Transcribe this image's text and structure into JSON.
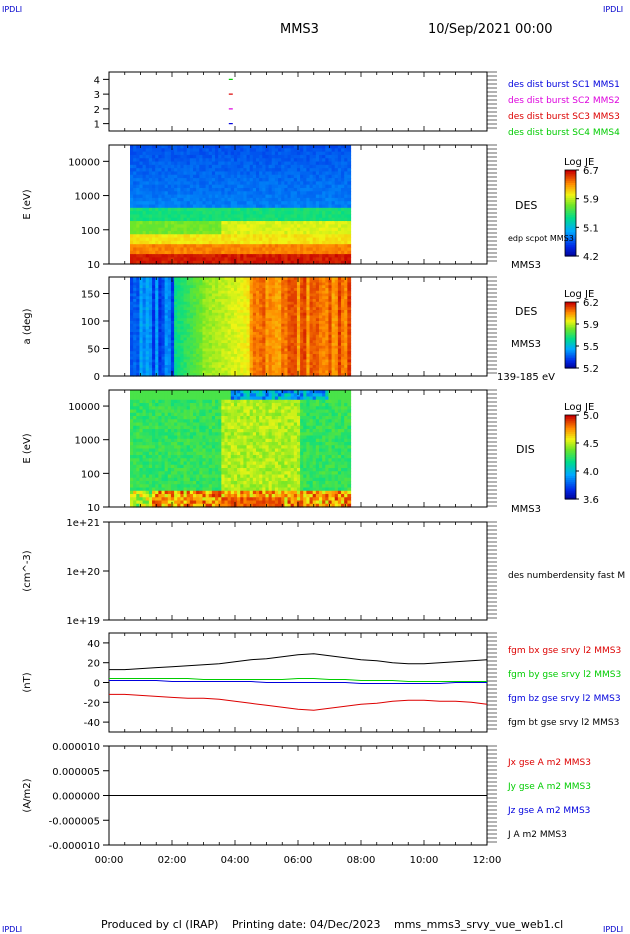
{
  "corner_label": "IPDLI",
  "header": {
    "spacecraft": "MMS3",
    "datetime": "10/Sep/2021 00:00"
  },
  "footer": {
    "produced_by": "Produced by cl (IRAP)",
    "printing_date": "Printing date: 04/Dec/2023",
    "filename": "mms_mms3_srvy_vue_web1.cl"
  },
  "chart_data": [
    {
      "id": "burst",
      "type": "scatter",
      "xlim": [
        "00:00",
        "12:00"
      ],
      "ylim": [
        0.5,
        4.5
      ],
      "yticks": [
        "1",
        "2",
        "3",
        "4"
      ],
      "series": [
        {
          "name": "des dist burst SC1 MMS1",
          "color": "#0000dd",
          "y": 1,
          "x": [
            "03:52"
          ]
        },
        {
          "name": "des dist burst SC2 MMS2",
          "color": "#dd00dd",
          "y": 2,
          "x": [
            "03:52"
          ]
        },
        {
          "name": "des dist burst SC3 MMS3",
          "color": "#dd0000",
          "y": 3,
          "x": [
            "03:52"
          ]
        },
        {
          "name": "des dist burst SC4 MMS4",
          "color": "#00cc00",
          "y": 4,
          "x": [
            "03:52"
          ]
        }
      ]
    },
    {
      "id": "des_energy",
      "type": "heatmap",
      "ylabel": "E (eV)",
      "yscale": "log",
      "ylim": [
        10,
        30000
      ],
      "yticks": [
        "10",
        "100",
        "1000",
        "10000"
      ],
      "data_span": [
        "00:40",
        "07:40"
      ],
      "right_labels": [
        "DES",
        "edp scpot MMS3",
        "MMS3"
      ],
      "colorbar": {
        "title": "Log JE",
        "ticks": [
          "6.7",
          "5.9",
          "5.1",
          "4.2"
        ],
        "range": [
          4.2,
          6.7
        ]
      }
    },
    {
      "id": "des_pitch",
      "type": "heatmap",
      "ylabel": "a (deg)",
      "ylim": [
        0,
        180
      ],
      "yticks": [
        "0",
        "50",
        "100",
        "150"
      ],
      "data_span": [
        "00:40",
        "07:40"
      ],
      "right_labels": [
        "DES",
        "MMS3",
        "139-185 eV"
      ],
      "colorbar": {
        "title": "Log JE",
        "ticks": [
          "6.2",
          "5.9",
          "5.5",
          "5.2"
        ],
        "range": [
          5.2,
          6.2
        ]
      }
    },
    {
      "id": "dis_energy",
      "type": "heatmap",
      "ylabel": "E (eV)",
      "yscale": "log",
      "ylim": [
        10,
        30000
      ],
      "yticks": [
        "10",
        "100",
        "1000",
        "10000"
      ],
      "data_span": [
        "00:40",
        "07:40"
      ],
      "right_labels": [
        "DIS",
        "MMS3"
      ],
      "colorbar": {
        "title": "Log JE",
        "ticks": [
          "5.0",
          "4.5",
          "4.0",
          "3.6"
        ],
        "range": [
          3.6,
          5.0
        ]
      }
    },
    {
      "id": "density",
      "type": "line",
      "ylabel": "(cm^-3)",
      "yscale": "log",
      "ylim": [
        1e+19,
        1e+21
      ],
      "yticks": [
        "1e+19",
        "1e+20",
        "1e+21"
      ],
      "series": [
        {
          "name": "des numberdensity fast M",
          "color": "#000000",
          "x": [],
          "y": []
        }
      ]
    },
    {
      "id": "fgm",
      "type": "line",
      "ylabel": "(nT)",
      "ylim": [
        -50,
        50
      ],
      "yticks": [
        "-40",
        "-20",
        "0",
        "20",
        "40"
      ],
      "x": [
        "00:00",
        "00:30",
        "01:00",
        "01:30",
        "02:00",
        "02:30",
        "03:00",
        "03:30",
        "04:00",
        "04:30",
        "05:00",
        "05:30",
        "06:00",
        "06:30",
        "07:00",
        "07:30",
        "08:00",
        "08:30",
        "09:00",
        "09:30",
        "10:00",
        "10:30",
        "11:00",
        "11:30",
        "12:00"
      ],
      "series": [
        {
          "name": "fgm bx gse srvy l2 MMS3",
          "color": "#dd0000",
          "values": [
            -12,
            -12,
            -13,
            -14,
            -15,
            -16,
            -16,
            -17,
            -19,
            -21,
            -23,
            -25,
            -27,
            -28,
            -26,
            -24,
            -22,
            -21,
            -19,
            -18,
            -18,
            -19,
            -19,
            -20,
            -22
          ]
        },
        {
          "name": "fgm by gse srvy l2 MMS3",
          "color": "#00cc00",
          "values": [
            4,
            4,
            4,
            4,
            4,
            4,
            3,
            3,
            3,
            3,
            3,
            3,
            4,
            4,
            3,
            3,
            2,
            2,
            2,
            1,
            1,
            1,
            1,
            1,
            1
          ]
        },
        {
          "name": "fgm bz gse srvy l2 MMS3",
          "color": "#0000dd",
          "values": [
            2,
            2,
            2,
            2,
            1,
            1,
            1,
            1,
            1,
            1,
            0,
            0,
            0,
            0,
            0,
            0,
            -1,
            -1,
            -1,
            -1,
            -1,
            -1,
            0,
            0,
            0
          ]
        },
        {
          "name": "fgm bt gse srvy l2 MMS3",
          "color": "#000000",
          "values": [
            13,
            13,
            14,
            15,
            16,
            17,
            18,
            19,
            21,
            23,
            24,
            26,
            28,
            29,
            27,
            25,
            23,
            22,
            20,
            19,
            19,
            20,
            21,
            22,
            23
          ]
        }
      ]
    },
    {
      "id": "current",
      "type": "line",
      "ylabel": "(A/m2)",
      "ylim": [
        -1e-05,
        1e-05
      ],
      "yticks": [
        "-0.000010",
        "-0.000005",
        "0.000000",
        "0.000005",
        "0.000010"
      ],
      "series": [
        {
          "name": "Jx gse A m2 MMS3",
          "color": "#dd0000",
          "values": []
        },
        {
          "name": "Jy gse A m2 MMS3",
          "color": "#00cc00",
          "values": []
        },
        {
          "name": "Jz gse A m2 MMS3",
          "color": "#0000dd",
          "values": []
        },
        {
          "name": "J A m2 MMS3",
          "color": "#000000",
          "values": [
            0,
            0,
            0,
            0,
            0,
            0,
            0,
            0,
            0,
            0,
            0,
            0,
            0,
            0,
            0,
            0,
            0,
            0,
            0,
            0,
            0,
            0,
            0,
            0,
            0
          ]
        }
      ]
    }
  ],
  "x_axis": {
    "ticks": [
      "00:00",
      "02:00",
      "04:00",
      "06:00",
      "08:00",
      "10:00",
      "12:00"
    ]
  }
}
